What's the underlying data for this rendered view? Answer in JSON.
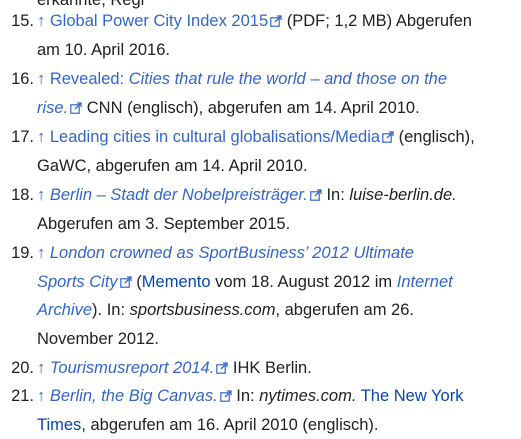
{
  "top_partial": "erkannte, Regi",
  "ext_icon": "external-link-icon",
  "refs": [
    {
      "num": "15.",
      "arrow": "↑",
      "link": "Global Power City Index 2015",
      "after": "(PDF; 1,2 MB) Abgerufen",
      "line2": "am 10. April 2016."
    },
    {
      "num": "16.",
      "arrow": "↑",
      "link_a": "Revealed: ",
      "link_b": "Cities that rule the world – and those on the",
      "link_c": "rise.",
      "after": "CNN (englisch), abgerufen am 14. April 2010."
    },
    {
      "num": "17.",
      "arrow": "↑",
      "link": "Leading cities in cultural globalisations/Media",
      "after": "(englisch),",
      "line2": "GaWC, abgerufen am 14. April 2010."
    },
    {
      "num": "18.",
      "arrow": "↑",
      "link": "Berlin – Stadt der Nobelpreisträger.",
      "in_label": "In:",
      "source": "luise-berlin.de.",
      "line2": "Abgerufen am 3. September 2015."
    },
    {
      "num": "19.",
      "arrow": "↑",
      "link_a": "London crowned as SportBusiness’ 2012 Ultimate",
      "link_b": "Sports City",
      "paren_open": "(",
      "memento": "Memento",
      "mid": "vom 18. August 2012 im",
      "archive_a": "Internet",
      "archive_b": "Archive",
      "after": "). In:",
      "source": "sportsbusiness.com",
      "after2": ", abgerufen am 26.",
      "line3": "November 2012."
    },
    {
      "num": "20.",
      "arrow": "↑",
      "link": "Tourismusreport 2014.",
      "after": "IHK Berlin."
    },
    {
      "num": "21.",
      "arrow": "↑",
      "link": "Berlin, the Big Canvas.",
      "in_label": "In:",
      "source": "nytimes.com.",
      "publisher_a": "The New York",
      "publisher_b": "Times",
      "after": ", abgerufen am 16. April 2010 (englisch)."
    }
  ]
}
